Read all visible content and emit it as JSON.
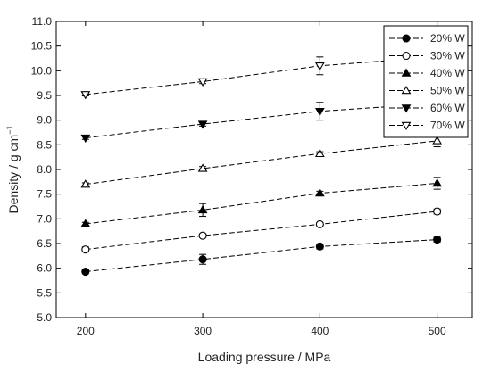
{
  "chart_data": {
    "type": "line",
    "xlabel": "Loading pressure / MPa",
    "ylabel_main": "Density / g cm",
    "ylabel_sup": "−1",
    "xlim": [
      175,
      530
    ],
    "ylim": [
      5.0,
      11.0
    ],
    "x_ticks": [
      200,
      300,
      400,
      500
    ],
    "x_tick_labels": [
      "200",
      "300",
      "400",
      "500"
    ],
    "y_ticks": [
      5.0,
      5.5,
      6.0,
      6.5,
      7.0,
      7.5,
      8.0,
      8.5,
      9.0,
      9.5,
      10.0,
      10.5,
      11.0
    ],
    "y_tick_labels": [
      "5.0",
      "5.5",
      "6.0",
      "6.5",
      "7.0",
      "7.5",
      "8.0",
      "8.5",
      "9.0",
      "9.5",
      "10.0",
      "10.5",
      "11.0"
    ],
    "grid": false,
    "legend_position": "top-right",
    "line_style": "dashed",
    "x": [
      200,
      300,
      400,
      500
    ],
    "series": [
      {
        "name": "20% W",
        "marker": "circle-filled",
        "values": [
          5.93,
          6.18,
          6.44,
          6.58
        ],
        "errors": [
          0.04,
          0.1,
          0.05,
          0.05
        ]
      },
      {
        "name": "30% W",
        "marker": "circle-open",
        "values": [
          6.38,
          6.66,
          6.89,
          7.15
        ],
        "errors": [
          0.05,
          0.03,
          0.03,
          0.05
        ]
      },
      {
        "name": "40% W",
        "marker": "triangle-up-filled",
        "values": [
          6.9,
          7.18,
          7.52,
          7.72
        ],
        "errors": [
          0.03,
          0.13,
          0.04,
          0.12
        ]
      },
      {
        "name": "50% W",
        "marker": "triangle-up-open",
        "values": [
          7.7,
          8.02,
          8.32,
          8.58
        ],
        "errors": [
          0.03,
          0.04,
          0.04,
          0.12
        ]
      },
      {
        "name": "60% W",
        "marker": "triangle-down-filled",
        "values": [
          8.64,
          8.92,
          9.18,
          9.34
        ],
        "errors": [
          0.03,
          0.04,
          0.18,
          0.04
        ]
      },
      {
        "name": "70% W",
        "marker": "triangle-down-open",
        "values": [
          9.52,
          9.78,
          10.1,
          10.28
        ],
        "errors": [
          0.03,
          0.04,
          0.18,
          0.05
        ]
      }
    ]
  }
}
